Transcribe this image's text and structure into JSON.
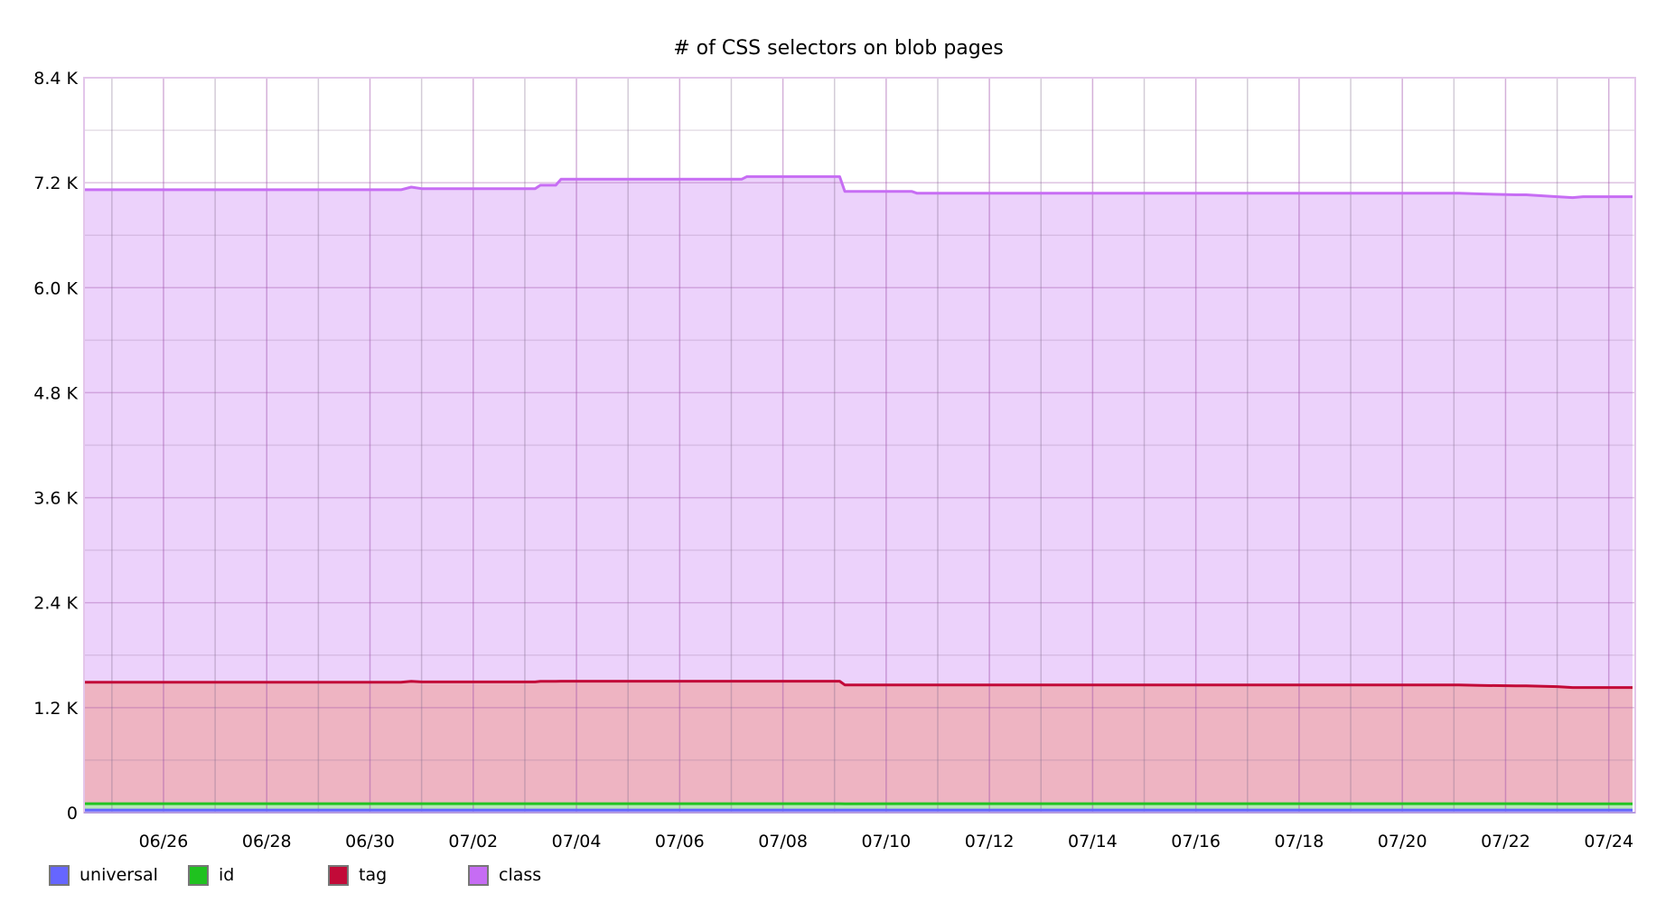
{
  "chart_data": {
    "type": "area",
    "stacked": true,
    "title": "# of CSS selectors on blob pages",
    "xlabel": "",
    "ylabel": "",
    "ylim": [
      0,
      8400
    ],
    "y_ticks": [
      {
        "value": 0,
        "label": "0"
      },
      {
        "value": 1200,
        "label": "1.2 K"
      },
      {
        "value": 2400,
        "label": "2.4 K"
      },
      {
        "value": 3600,
        "label": "3.6 K"
      },
      {
        "value": 4800,
        "label": "4.8 K"
      },
      {
        "value": 6000,
        "label": "6.0 K"
      },
      {
        "value": 7200,
        "label": "7.2 K"
      },
      {
        "value": 8400,
        "label": "8.4 K"
      }
    ],
    "x_origin_label": "06/25",
    "x_range_days": [
      -0.54,
      29.46
    ],
    "x_ticks": [
      {
        "day": 1,
        "label": "06/26"
      },
      {
        "day": 3,
        "label": "06/28"
      },
      {
        "day": 5,
        "label": "06/30"
      },
      {
        "day": 7,
        "label": "07/02"
      },
      {
        "day": 9,
        "label": "07/04"
      },
      {
        "day": 11,
        "label": "07/06"
      },
      {
        "day": 13,
        "label": "07/08"
      },
      {
        "day": 15,
        "label": "07/10"
      },
      {
        "day": 17,
        "label": "07/12"
      },
      {
        "day": 19,
        "label": "07/14"
      },
      {
        "day": 21,
        "label": "07/16"
      },
      {
        "day": 23,
        "label": "07/18"
      },
      {
        "day": 25,
        "label": "07/20"
      },
      {
        "day": 27,
        "label": "07/22"
      },
      {
        "day": 29,
        "label": "07/24"
      }
    ],
    "grid": true,
    "legend_position": "bottom",
    "x": [
      -0.54,
      5.6,
      5.8,
      6.0,
      8.2,
      8.3,
      8.6,
      8.7,
      12.2,
      12.3,
      14.1,
      14.2,
      15.5,
      15.6,
      26.1,
      26.5,
      27.2,
      27.4,
      28.0,
      28.3,
      28.5,
      29.46
    ],
    "series": [
      {
        "name": "universal",
        "color": "#6666ff",
        "fill": "#b3b3ff",
        "values": [
          30,
          30,
          30,
          30,
          30,
          30,
          30,
          30,
          30,
          30,
          30,
          30,
          30,
          30,
          30,
          30,
          30,
          30,
          30,
          30,
          30,
          30
        ]
      },
      {
        "name": "id",
        "color": "#22c322",
        "fill": "#b8e8b8",
        "values": [
          72,
          72,
          72,
          72,
          72,
          72,
          72,
          72,
          72,
          72,
          72,
          70,
          72,
          72,
          72,
          72,
          72,
          72,
          70,
          70,
          70,
          70
        ]
      },
      {
        "name": "tag",
        "color": "#c20a38",
        "fill": "#eeb4c2",
        "values": [
          1388,
          1388,
          1398,
          1392,
          1392,
          1398,
          1398,
          1400,
          1400,
          1400,
          1400,
          1360,
          1358,
          1358,
          1358,
          1352,
          1348,
          1348,
          1340,
          1330,
          1330,
          1330
        ]
      },
      {
        "name": "class",
        "color": "#c76df4",
        "fill": "#ecd2fb",
        "values": [
          5630,
          5630,
          5650,
          5638,
          5638,
          5672,
          5672,
          5738,
          5738,
          5768,
          5768,
          5640,
          5640,
          5620,
          5620,
          5618,
          5612,
          5612,
          5600,
          5600,
          5610,
          5610
        ]
      }
    ]
  },
  "legend": [
    {
      "label": "universal",
      "color": "#6666ff"
    },
    {
      "label": "id",
      "color": "#1fc21f"
    },
    {
      "label": "tag",
      "color": "#c20a38"
    },
    {
      "label": "class",
      "color": "#c66cf4"
    }
  ]
}
